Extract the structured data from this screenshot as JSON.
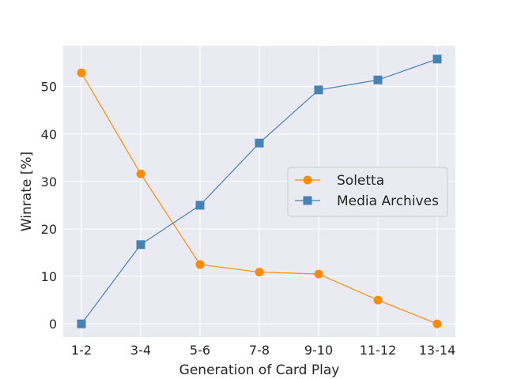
{
  "chart_data": {
    "type": "line",
    "categories": [
      "1-2",
      "3-4",
      "5-6",
      "7-8",
      "9-10",
      "11-12",
      "13-14"
    ],
    "xlabel": "Generation of Card Play",
    "ylabel": "Winrate [%]",
    "ylim": [
      -2.8,
      58.6
    ],
    "yticks": [
      0,
      10,
      20,
      30,
      40,
      50
    ],
    "grid": true,
    "legend_position": "center-right",
    "series": [
      {
        "name": "Soletta",
        "color": "#ff8c00",
        "marker": "circle",
        "values": [
          52.9,
          31.6,
          12.5,
          10.9,
          10.5,
          5.0,
          0.0
        ]
      },
      {
        "name": "Media Archives",
        "color": "#4682b4",
        "marker": "square",
        "values": [
          0.0,
          16.7,
          25.0,
          38.1,
          49.3,
          51.4,
          55.8
        ]
      }
    ]
  }
}
